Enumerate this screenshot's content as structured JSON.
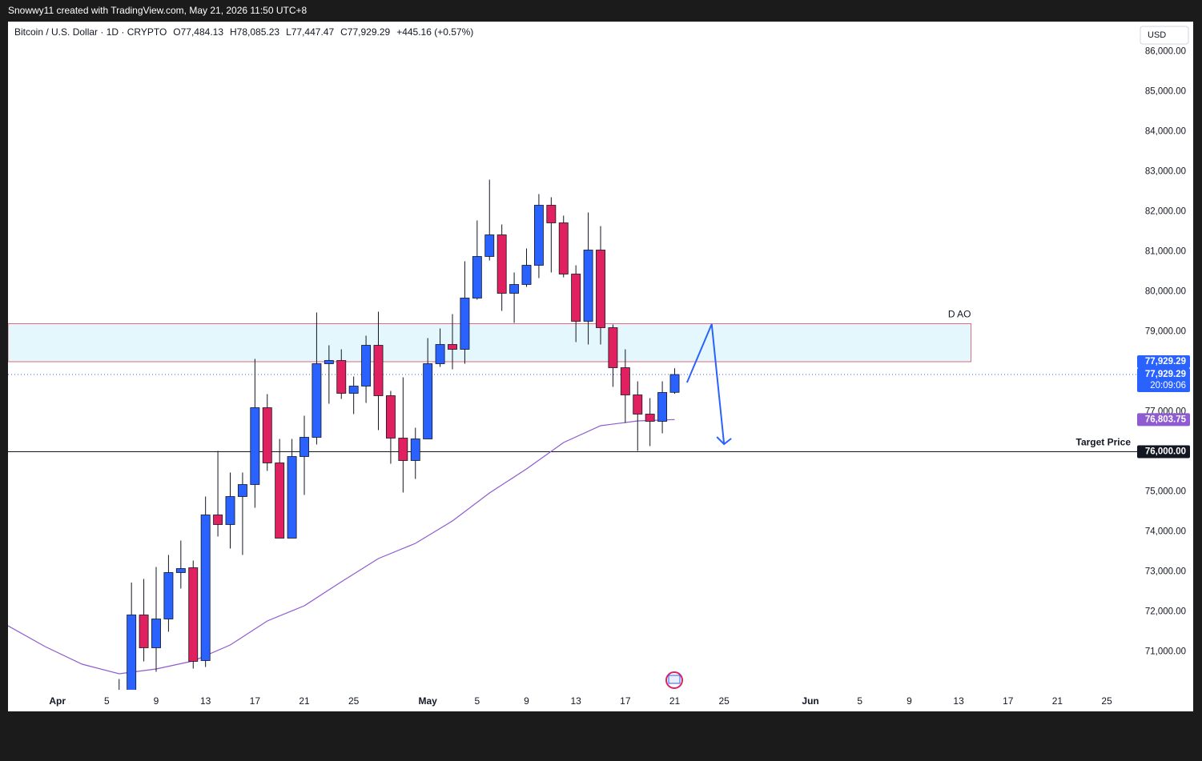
{
  "chart_data": {
    "type": "candlestick",
    "attribution": "Snowwy11 created with TradingView.com, May 21, 2026 11:50 UTC+8",
    "symbol": "Bitcoin / U.S. Dollar · 1D · CRYPTO",
    "ohlc_text": [
      "O77,484.13",
      "H78,085.23",
      "L77,447.47",
      "C77,929.29",
      "+445.16 (+0.57%)"
    ],
    "currency": "USD",
    "up_color": "#2962ff",
    "down_color": "#e0205f",
    "x": [
      "04-06",
      "04-07",
      "04-08",
      "04-09",
      "04-10",
      "04-11",
      "04-12",
      "04-13",
      "04-14",
      "04-15",
      "04-16",
      "04-17",
      "04-18",
      "04-19",
      "04-20",
      "04-21",
      "04-22",
      "04-23",
      "04-24",
      "04-25",
      "04-26",
      "04-27",
      "04-28",
      "04-29",
      "04-30",
      "05-01",
      "05-02",
      "05-03",
      "05-04",
      "05-05",
      "05-06",
      "05-07",
      "05-08",
      "05-09",
      "05-10",
      "05-11",
      "05-12",
      "05-13",
      "05-14",
      "05-15",
      "05-16",
      "05-17",
      "05-18",
      "05-19",
      "05-20",
      "05-21"
    ],
    "open": [
      69900,
      69800,
      71920,
      71100,
      71820,
      72980,
      73100,
      70780,
      74420,
      74180,
      74880,
      75180,
      77100,
      75720,
      73840,
      75880,
      76360,
      78200,
      78280,
      77460,
      77640,
      78660,
      77400,
      76340,
      75780,
      76320,
      78200,
      78680,
      78560,
      79840,
      80880,
      81420,
      79960,
      80180,
      80660,
      82160,
      81720,
      80440,
      79260,
      81040,
      79100,
      78100,
      77420,
      76940,
      76760,
      77484.13
    ],
    "high": [
      70320,
      72730,
      72820,
      73120,
      73420,
      73780,
      73280,
      74880,
      76020,
      75480,
      75480,
      78320,
      77440,
      76320,
      76320,
      76900,
      79480,
      78660,
      78560,
      77880,
      78900,
      79500,
      77520,
      77860,
      76600,
      78840,
      79080,
      79440,
      80760,
      81780,
      82800,
      81680,
      80480,
      81080,
      82440,
      82360,
      81900,
      80660,
      81980,
      81640,
      79180,
      78560,
      77760,
      77340,
      77760,
      78085.23
    ],
    "low": [
      69500,
      69500,
      70760,
      70500,
      71500,
      72580,
      70580,
      70620,
      73880,
      73580,
      73420,
      74600,
      75520,
      73840,
      73840,
      74920,
      76180,
      77200,
      77320,
      76940,
      77220,
      76540,
      75700,
      74980,
      75320,
      76320,
      78120,
      78060,
      78200,
      79800,
      80780,
      79520,
      79220,
      80120,
      80340,
      80480,
      80360,
      78740,
      78680,
      78680,
      77620,
      76720,
      76020,
      76140,
      76460,
      77447.47
    ],
    "close": [
      69700,
      71920,
      71100,
      71820,
      72980,
      73080,
      70760,
      74420,
      74180,
      74880,
      75180,
      77100,
      75720,
      73840,
      75880,
      76360,
      78200,
      78280,
      77460,
      77640,
      78660,
      77400,
      76340,
      75780,
      76320,
      78200,
      78680,
      78560,
      79840,
      80880,
      81420,
      79960,
      80180,
      80660,
      82160,
      81720,
      80440,
      79260,
      81040,
      79100,
      78100,
      77420,
      76940,
      76760,
      77480,
      77929.29
    ],
    "moving_average": {
      "color": "#8e5bd0",
      "x": [
        "03-28",
        "03-31",
        "04-03",
        "04-06",
        "04-09",
        "04-12",
        "04-15",
        "04-18",
        "04-21",
        "04-24",
        "04-27",
        "04-30",
        "05-03",
        "05-06",
        "05-09",
        "05-12",
        "05-15",
        "05-18",
        "05-21"
      ],
      "values": [
        71650,
        71130,
        70690,
        70450,
        70570,
        70770,
        71170,
        71770,
        72150,
        72750,
        73330,
        73710,
        74270,
        74970,
        75570,
        76230,
        76650,
        76770,
        76803.75
      ],
      "tag_label": "76,803.75"
    },
    "price_line": {
      "value": 77929.29,
      "labels": [
        "77,929.29",
        "77,929.29",
        "20:09:06"
      ]
    },
    "zone": {
      "label": "D AO",
      "top": 79200,
      "bottom": 78250,
      "x_start": "03-28",
      "x_end": "06-14"
    },
    "target": {
      "label": "Target Price",
      "value": 76000,
      "tag_label": "76,000.00"
    },
    "projection": {
      "x": [
        "05-22",
        "05-24",
        "05-25"
      ],
      "values": [
        77730,
        79190,
        76190
      ]
    },
    "xlim": [
      "03-28",
      "07-02"
    ],
    "ylim": [
      70050,
      86750
    ],
    "yticks": [
      {
        "value": 71000,
        "label": "71,000.00"
      },
      {
        "value": 72000,
        "label": "72,000.00"
      },
      {
        "value": 73000,
        "label": "73,000.00"
      },
      {
        "value": 74000,
        "label": "74,000.00"
      },
      {
        "value": 75000,
        "label": "75,000.00"
      },
      {
        "value": 77000,
        "label": "77,000.00"
      },
      {
        "value": 79000,
        "label": "79,000.00"
      },
      {
        "value": 80000,
        "label": "80,000.00"
      },
      {
        "value": 81000,
        "label": "81,000.00"
      },
      {
        "value": 82000,
        "label": "82,000.00"
      },
      {
        "value": 83000,
        "label": "83,000.00"
      },
      {
        "value": 84000,
        "label": "84,000.00"
      },
      {
        "value": 85000,
        "label": "85,000.00"
      },
      {
        "value": 86000,
        "label": "86,000.00"
      }
    ],
    "xticks": [
      {
        "value": "04-01",
        "label": "Apr"
      },
      {
        "value": "04-05",
        "label": "5"
      },
      {
        "value": "04-09",
        "label": "9"
      },
      {
        "value": "04-13",
        "label": "13"
      },
      {
        "value": "04-17",
        "label": "17"
      },
      {
        "value": "04-21",
        "label": "21"
      },
      {
        "value": "04-25",
        "label": "25"
      },
      {
        "value": "05-01",
        "label": "May"
      },
      {
        "value": "05-05",
        "label": "5"
      },
      {
        "value": "05-09",
        "label": "9"
      },
      {
        "value": "05-13",
        "label": "13"
      },
      {
        "value": "05-17",
        "label": "17"
      },
      {
        "value": "05-21",
        "label": "21"
      },
      {
        "value": "05-25",
        "label": "25"
      },
      {
        "value": "06-01",
        "label": "Jun"
      },
      {
        "value": "06-05",
        "label": "5"
      },
      {
        "value": "06-09",
        "label": "9"
      },
      {
        "value": "06-13",
        "label": "13"
      },
      {
        "value": "06-17",
        "label": "17"
      },
      {
        "value": "06-21",
        "label": "21"
      },
      {
        "value": "06-25",
        "label": "25"
      }
    ]
  }
}
